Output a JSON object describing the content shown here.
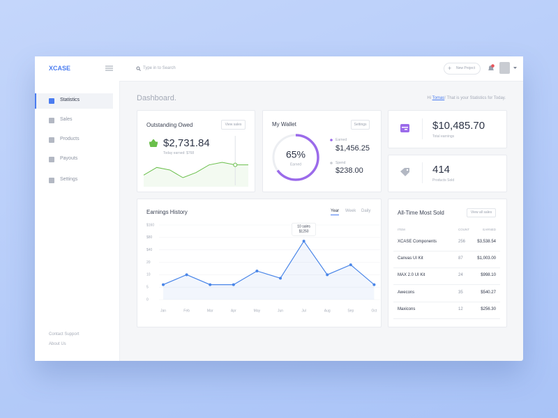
{
  "brand": "XCASE",
  "search_placeholder": "Type in to Search",
  "new_project": "New Project",
  "nav": [
    "Statistics",
    "Sales",
    "Products",
    "Payouts",
    "Settings"
  ],
  "active_nav": 0,
  "footer_links": [
    "Contact Support",
    "About Us"
  ],
  "page_title": "Dashboard.",
  "greeting": {
    "prefix": "Hi ",
    "name": "Tomas",
    "suffix": "! That is your Statistics for Today."
  },
  "outstanding": {
    "title": "Outstanding Owed",
    "button": "View sales",
    "amount": "$2,731.84",
    "note": "Today earned: $768",
    "sparkline": {
      "type": "line",
      "values": [
        2,
        5,
        4,
        1,
        3,
        6,
        7,
        6,
        6
      ],
      "color": "#6abf4b",
      "highlight_index": 7
    }
  },
  "wallet": {
    "title": "My Wallet",
    "button": "Settings",
    "percent": 65,
    "percent_label": "65%",
    "center_label": "Earned",
    "earned_label": "Earned",
    "earned": "$1,456.25",
    "spent_label": "Spend",
    "spent": "$238.00",
    "color": "#9b6bea"
  },
  "stats": [
    {
      "value": "$10,485.70",
      "label": "Total earnings"
    },
    {
      "value": "414",
      "label": "Products Sold"
    }
  ],
  "earnings": {
    "title": "Earnings History",
    "tabs": [
      "Year",
      "Week",
      "Daily"
    ],
    "active_tab": 0,
    "tooltip": [
      "10 sales",
      "$1250"
    ],
    "tooltip_index": 6,
    "chart": {
      "type": "line",
      "categories": [
        "Jan",
        "Feb",
        "Mar",
        "Apr",
        "May",
        "Jun",
        "Jul",
        "Aug",
        "Sep",
        "Oct"
      ],
      "values": [
        6,
        10,
        6,
        6,
        13,
        8.6,
        68,
        10,
        18,
        6
      ],
      "color": "#4a86e8",
      "ylim": [
        0,
        160
      ],
      "yticks": [
        {
          "value": 160,
          "label": "$160"
        },
        {
          "value": 80,
          "label": "$80"
        },
        {
          "value": 40,
          "label": "$40"
        },
        20,
        10,
        5,
        0
      ],
      "grid": true
    }
  },
  "most_sold": {
    "title": "All-Time Most Sold",
    "button": "View all sales",
    "columns": [
      "ITEM",
      "COUNT",
      "EARNED"
    ],
    "rows": [
      [
        "XCASE Components",
        256,
        "$3,538.54"
      ],
      [
        "Canvas UI Kit",
        87,
        "$1,003.00"
      ],
      [
        "MAX 2.0 UI Kit",
        24,
        "$998.10"
      ],
      [
        "Awecons",
        35,
        "$540.27"
      ],
      [
        "Maxicons",
        12,
        "$256.30"
      ]
    ]
  }
}
